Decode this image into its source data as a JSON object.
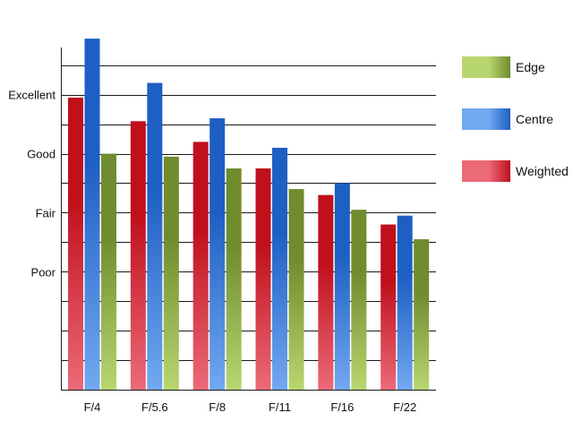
{
  "chart_data": {
    "type": "bar",
    "categories": [
      "F/4",
      "F/5.6",
      "F/8",
      "F/11",
      "F/16",
      "F/22"
    ],
    "series": [
      {
        "name": "Weighted",
        "values": [
          3.95,
          3.55,
          3.2,
          2.75,
          2.3,
          1.8
        ],
        "color": "#c0101c",
        "color_light": "#ec6a78"
      },
      {
        "name": "Centre",
        "values": [
          4.95,
          4.2,
          3.6,
          3.1,
          2.5,
          1.95
        ],
        "color": "#1e5fc4",
        "color_light": "#72a8f0"
      },
      {
        "name": "Edge",
        "values": [
          3.0,
          2.95,
          2.75,
          2.4,
          2.05,
          1.55
        ],
        "color": "#6f8c2e",
        "color_light": "#b8d670"
      }
    ],
    "y_ticks": [
      {
        "value": 1,
        "label": "Poor"
      },
      {
        "value": 2,
        "label": "Fair"
      },
      {
        "value": 3,
        "label": "Good"
      },
      {
        "value": 4,
        "label": "Excellent"
      }
    ],
    "ylim": [
      -1,
      4.8
    ],
    "grid_step": 0.5,
    "grid": true,
    "legend_position": "right",
    "legend_order": [
      "Edge",
      "Centre",
      "Weighted"
    ],
    "title": "",
    "xlabel": "",
    "ylabel": ""
  }
}
